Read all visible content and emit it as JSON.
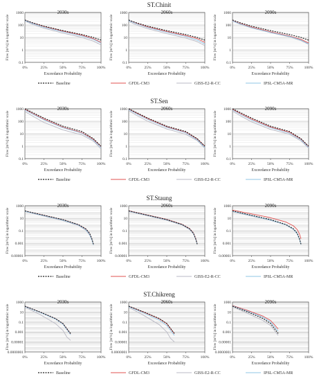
{
  "figure": {
    "x_axis_label": "Exceedance Probability",
    "y_axis_label": "Flow [m³/s] in logarithmic scale",
    "legend": [
      {
        "name": "Baseline",
        "color": "#1a1a1a",
        "dash": true
      },
      {
        "name": "GFDL-CM3",
        "color": "#e0504f",
        "dash": false
      },
      {
        "name": "GISS-E2-R-CC",
        "color": "#b8b8c4",
        "dash": false
      },
      {
        "name": "IPSL-CM5A-MR",
        "color": "#8fc4e6",
        "dash": false
      }
    ]
  },
  "chart_data": [
    {
      "type": "line",
      "station": "ST.Chinit",
      "log_y": true,
      "ylim": [
        0.1,
        1000
      ],
      "yticks": [
        "0.1",
        "1",
        "10",
        "100",
        "1000"
      ],
      "x": [
        0,
        10,
        25,
        50,
        75,
        90,
        100
      ],
      "xticks": [
        "0%",
        "25%",
        "50%",
        "75%",
        "100%"
      ],
      "panels": [
        {
          "period": "2030s",
          "series": [
            {
              "name": "Baseline",
              "values": [
                250,
                150,
                80,
                35,
                17,
                10,
                6
              ]
            },
            {
              "name": "GFDL-CM3",
              "values": [
                240,
                140,
                75,
                32,
                15,
                8,
                4
              ]
            },
            {
              "name": "GISS-E2-R-CC",
              "values": [
                200,
                110,
                55,
                22,
                10,
                5,
                2.5
              ]
            },
            {
              "name": "IPSL-CM5A-MR",
              "values": [
                230,
                130,
                65,
                28,
                13,
                7,
                3.5
              ]
            }
          ]
        },
        {
          "period": "2060s",
          "series": [
            {
              "name": "Baseline",
              "values": [
                250,
                150,
                80,
                35,
                17,
                10,
                6
              ]
            },
            {
              "name": "GFDL-CM3",
              "values": [
                230,
                135,
                70,
                30,
                14,
                8,
                4
              ]
            },
            {
              "name": "GISS-E2-R-CC",
              "values": [
                190,
                100,
                50,
                20,
                9,
                4.5,
                2.2
              ]
            },
            {
              "name": "IPSL-CM5A-MR",
              "values": [
                220,
                125,
                62,
                26,
                12,
                6,
                3
              ]
            }
          ]
        },
        {
          "period": "2090s",
          "series": [
            {
              "name": "Baseline",
              "values": [
                250,
                150,
                80,
                35,
                17,
                10,
                6
              ]
            },
            {
              "name": "GFDL-CM3",
              "values": [
                220,
                130,
                68,
                28,
                13,
                7,
                3.5
              ]
            },
            {
              "name": "GISS-E2-R-CC",
              "values": [
                200,
                115,
                58,
                24,
                11,
                5.5,
                2.8
              ]
            },
            {
              "name": "IPSL-CM5A-MR",
              "values": [
                210,
                120,
                60,
                25,
                12,
                6,
                3
              ]
            }
          ]
        }
      ]
    },
    {
      "type": "line",
      "station": "ST.Sen",
      "log_y": true,
      "ylim": [
        0.1,
        1000
      ],
      "yticks": [
        "0.1",
        "1",
        "10",
        "100",
        "1000"
      ],
      "x": [
        0,
        10,
        25,
        50,
        75,
        90,
        100
      ],
      "xticks": [
        "0%",
        "25%",
        "50%",
        "75%",
        "100%"
      ],
      "panels": [
        {
          "period": "2030s",
          "series": [
            {
              "name": "Baseline",
              "values": [
                1000,
                500,
                180,
                40,
                15,
                4,
                1
              ]
            },
            {
              "name": "GFDL-CM3",
              "values": [
                900,
                420,
                150,
                33,
                12,
                3.5,
                0.9
              ]
            },
            {
              "name": "GISS-E2-R-CC",
              "values": [
                600,
                260,
                80,
                20,
                8,
                2.5,
                0.6
              ]
            },
            {
              "name": "IPSL-CM5A-MR",
              "values": [
                800,
                380,
                130,
                30,
                11,
                3,
                0.8
              ]
            }
          ]
        },
        {
          "period": "2060s",
          "series": [
            {
              "name": "Baseline",
              "values": [
                1000,
                500,
                180,
                40,
                15,
                4,
                1
              ]
            },
            {
              "name": "GFDL-CM3",
              "values": [
                950,
                460,
                160,
                36,
                13,
                3.8,
                1
              ]
            },
            {
              "name": "GISS-E2-R-CC",
              "values": [
                700,
                300,
                100,
                24,
                9,
                2.8,
                0.7
              ]
            },
            {
              "name": "IPSL-CM5A-MR",
              "values": [
                850,
                400,
                140,
                32,
                12,
                3.2,
                0.8
              ]
            }
          ]
        },
        {
          "period": "2090s",
          "series": [
            {
              "name": "Baseline",
              "values": [
                1000,
                500,
                180,
                40,
                15,
                4,
                1
              ]
            },
            {
              "name": "GFDL-CM3",
              "values": [
                900,
                420,
                150,
                34,
                13,
                3.6,
                0.9
              ]
            },
            {
              "name": "GISS-E2-R-CC",
              "values": [
                650,
                280,
                90,
                22,
                9,
                2.6,
                0.7
              ]
            },
            {
              "name": "IPSL-CM5A-MR",
              "values": [
                800,
                370,
                125,
                30,
                11,
                3.2,
                0.8
              ]
            }
          ]
        }
      ]
    },
    {
      "type": "line",
      "station": "ST.Staung",
      "log_y": true,
      "ylim": [
        1e-05,
        1000
      ],
      "yticks": [
        "0.00001",
        "0.001",
        "0.1",
        "10",
        "1000"
      ],
      "x": [
        0,
        25,
        50,
        70,
        80,
        85,
        88,
        90
      ],
      "xticks": [
        "0%",
        "25%",
        "50%",
        "75%",
        "100%"
      ],
      "panels": [
        {
          "period": "2030s",
          "series": [
            {
              "name": "Baseline",
              "values": [
                150,
                30,
                6,
                1,
                0.2,
                0.04,
                0.005,
                0.0007
              ]
            },
            {
              "name": "GFDL-CM3",
              "values": [
                140,
                28,
                5.5,
                0.9,
                0.18,
                0.03,
                0.004,
                0.0006
              ]
            },
            {
              "name": "GISS-E2-R-CC",
              "values": [
                120,
                22,
                4,
                0.7,
                0.12,
                0.02,
                0.003,
                0.0005
              ]
            },
            {
              "name": "IPSL-CM5A-MR",
              "values": [
                130,
                25,
                5,
                0.8,
                0.15,
                0.025,
                0.0035,
                0.0005
              ]
            }
          ]
        },
        {
          "period": "2060s",
          "series": [
            {
              "name": "Baseline",
              "values": [
                150,
                30,
                6,
                1,
                0.2,
                0.04,
                0.005,
                0.0007
              ]
            },
            {
              "name": "GFDL-CM3",
              "values": [
                160,
                32,
                6.5,
                1.1,
                0.22,
                0.045,
                0.006,
                0.0008
              ]
            },
            {
              "name": "GISS-E2-R-CC",
              "values": [
                120,
                24,
                4.5,
                0.8,
                0.15,
                0.03,
                0.004,
                0.0006
              ]
            },
            {
              "name": "IPSL-CM5A-MR",
              "values": [
                140,
                28,
                5.5,
                0.95,
                0.19,
                0.035,
                0.0045,
                0.0007
              ]
            }
          ]
        },
        {
          "period": "2090s",
          "series": [
            {
              "name": "Baseline",
              "values": [
                150,
                30,
                6,
                1,
                0.2,
                0.04,
                0.005,
                0.0007
              ]
            },
            {
              "name": "GFDL-CM3",
              "values": [
                200,
                50,
                12,
                2.5,
                0.6,
                0.15,
                0.03,
                0.005
              ]
            },
            {
              "name": "GISS-E2-R-CC",
              "values": [
                110,
                22,
                4.5,
                0.8,
                0.15,
                0.03,
                0.004,
                0.0006
              ]
            },
            {
              "name": "IPSL-CM5A-MR",
              "values": [
                130,
                26,
                5,
                0.9,
                0.17,
                0.03,
                0.004,
                0.0006
              ]
            }
          ]
        }
      ]
    },
    {
      "type": "line",
      "station": "ST.Chikreng",
      "log_y": true,
      "ylim": [
        1e-07,
        1000
      ],
      "yticks": [
        "0.0000001",
        "0.00001",
        "0.001",
        "0.1",
        "10",
        "1000"
      ],
      "x": [
        0,
        20,
        40,
        50,
        55,
        60
      ],
      "xticks": [
        "0%",
        "25%",
        "50%",
        "75%",
        "100%"
      ],
      "panels": [
        {
          "period": "2030s",
          "series": [
            {
              "name": "Baseline",
              "values": [
                150,
                10,
                0.5,
                0.05,
                0.005,
                0.0005
              ]
            },
            {
              "name": "GFDL-CM3",
              "values": [
                140,
                9,
                0.45,
                0.04,
                0.004,
                0.0004
              ]
            },
            {
              "name": "GISS-E2-R-CC",
              "values": [
                100,
                3,
                0.05,
                0.002,
                0.0001,
                2e-05
              ]
            },
            {
              "name": "IPSL-CM5A-MR",
              "values": [
                130,
                8,
                0.4,
                0.035,
                0.003,
                0.0003
              ]
            }
          ]
        },
        {
          "period": "2060s",
          "series": [
            {
              "name": "Baseline",
              "values": [
                150,
                10,
                0.5,
                0.05,
                0.005,
                0.0005
              ]
            },
            {
              "name": "GFDL-CM3",
              "values": [
                140,
                9,
                0.45,
                0.045,
                0.0045,
                0.00045
              ]
            },
            {
              "name": "GISS-E2-R-CC",
              "values": [
                90,
                2,
                0.03,
                0.001,
                5e-05,
                1e-05
              ]
            },
            {
              "name": "IPSL-CM5A-MR",
              "values": [
                120,
                6,
                0.25,
                0.02,
                0.002,
                0.0002
              ]
            }
          ]
        },
        {
          "period": "2090s",
          "series": [
            {
              "name": "Baseline",
              "values": [
                150,
                10,
                0.5,
                0.05,
                0.005,
                0.0005
              ]
            },
            {
              "name": "GFDL-CM3",
              "values": [
                200,
                20,
                1.5,
                0.2,
                0.03,
                0.004
              ]
            },
            {
              "name": "GISS-E2-R-CC",
              "values": [
                110,
                5,
                0.2,
                0.02,
                0.002,
                0.0002
              ]
            },
            {
              "name": "IPSL-CM5A-MR",
              "values": [
                170,
                14,
                0.9,
                0.1,
                0.012,
                0.0015
              ]
            }
          ]
        }
      ]
    }
  ]
}
